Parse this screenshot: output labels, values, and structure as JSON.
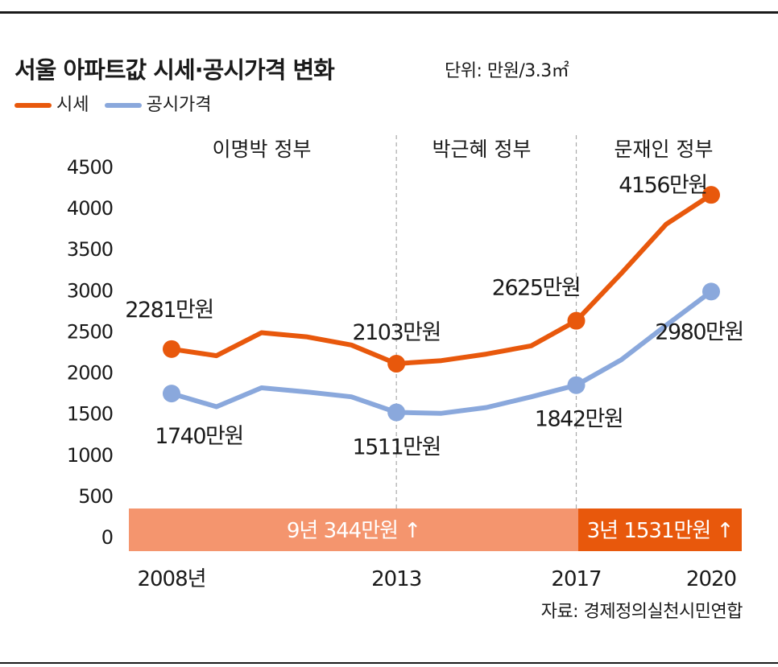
{
  "header": {
    "title": "서울 아파트값 시세·공시가격 변화",
    "unit": "단위: 만원/3.3㎡"
  },
  "legend": [
    {
      "label": "시세",
      "color": "#e8580c"
    },
    {
      "label": "공시가격",
      "color": "#8aa8dc"
    }
  ],
  "colors": {
    "market": "#e8580c",
    "official": "#8aa8dc",
    "band_light": "#f4956e",
    "band_dark": "#e8580c",
    "divider": "#aaaaaa"
  },
  "source": "자료: 경제정의실천시민연합",
  "chart_data": {
    "type": "line",
    "x": [
      2008,
      2009,
      2010,
      2011,
      2012,
      2013,
      2014,
      2015,
      2016,
      2017,
      2018,
      2019,
      2020
    ],
    "xticks": [
      {
        "x": 2008,
        "label": "2008년"
      },
      {
        "x": 2013,
        "label": "2013"
      },
      {
        "x": 2017,
        "label": "2017"
      },
      {
        "x": 2020,
        "label": "2020"
      }
    ],
    "ylim": [
      0,
      4500
    ],
    "yticks": [
      0,
      500,
      1000,
      1500,
      2000,
      2500,
      3000,
      3500,
      4000,
      4500
    ],
    "series": [
      {
        "name": "시세",
        "values": [
          2281,
          2200,
          2480,
          2430,
          2330,
          2103,
          2140,
          2220,
          2320,
          2625,
          3200,
          3800,
          4156
        ],
        "markers": [
          2008,
          2013,
          2017,
          2020
        ]
      },
      {
        "name": "공시가격",
        "values": [
          1740,
          1580,
          1810,
          1760,
          1700,
          1511,
          1500,
          1570,
          1700,
          1842,
          2150,
          2570,
          2980
        ],
        "markers": [
          2008,
          2013,
          2017,
          2020
        ]
      }
    ],
    "point_labels": [
      {
        "series": 0,
        "x": 2008,
        "text": "2281만원"
      },
      {
        "series": 0,
        "x": 2013,
        "text": "2103만원"
      },
      {
        "series": 0,
        "x": 2017,
        "text": "2625만원"
      },
      {
        "series": 0,
        "x": 2020,
        "text": "4156만원"
      },
      {
        "series": 1,
        "x": 2008,
        "text": "1740만원"
      },
      {
        "series": 1,
        "x": 2013,
        "text": "1511만원"
      },
      {
        "series": 1,
        "x": 2017,
        "text": "1842만원"
      },
      {
        "series": 1,
        "x": 2020,
        "text": "2980만원"
      }
    ],
    "periods": [
      {
        "label": "이명박 정부",
        "from": 2008,
        "to": 2013
      },
      {
        "label": "박근혜 정부",
        "from": 2013,
        "to": 2017
      },
      {
        "label": "문재인 정부",
        "from": 2017,
        "to": 2020
      }
    ],
    "dividers": [
      2013,
      2017
    ],
    "increase_bands": [
      {
        "from": 2008,
        "to": 2017,
        "text": "9년 344만원 ↑",
        "style": "light"
      },
      {
        "from": 2017,
        "to": 2020,
        "text": "3년 1531만원 ↑",
        "style": "dark"
      }
    ]
  }
}
